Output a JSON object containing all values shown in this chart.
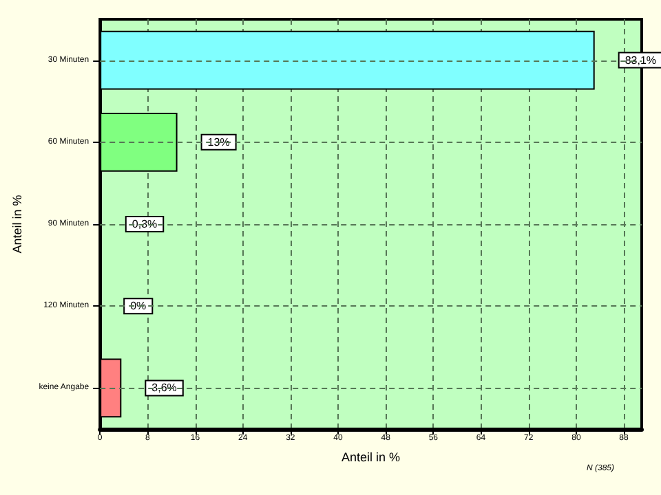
{
  "chart_data": {
    "type": "bar",
    "orientation": "horizontal",
    "categories": [
      "30 Minuten",
      "60 Minuten",
      "90 Minuten",
      "120 Minuten",
      "keine Angabe"
    ],
    "values": [
      83.1,
      13,
      0.3,
      0,
      3.6
    ],
    "value_labels": [
      "83,1%",
      "13%",
      "0,3%",
      "0%",
      "3,6%"
    ],
    "colors": [
      "#80ffff",
      "#80ff80",
      "#80ff80",
      "#80ff80",
      "#ff8080"
    ],
    "xlabel": "Anteil in %",
    "ylabel": "Anteil in %",
    "xlim": [
      0,
      91
    ],
    "xticks": [
      0,
      8,
      16,
      24,
      32,
      40,
      48,
      56,
      64,
      72,
      80,
      88
    ],
    "grid": true,
    "annotations": [
      "N (385)"
    ]
  }
}
